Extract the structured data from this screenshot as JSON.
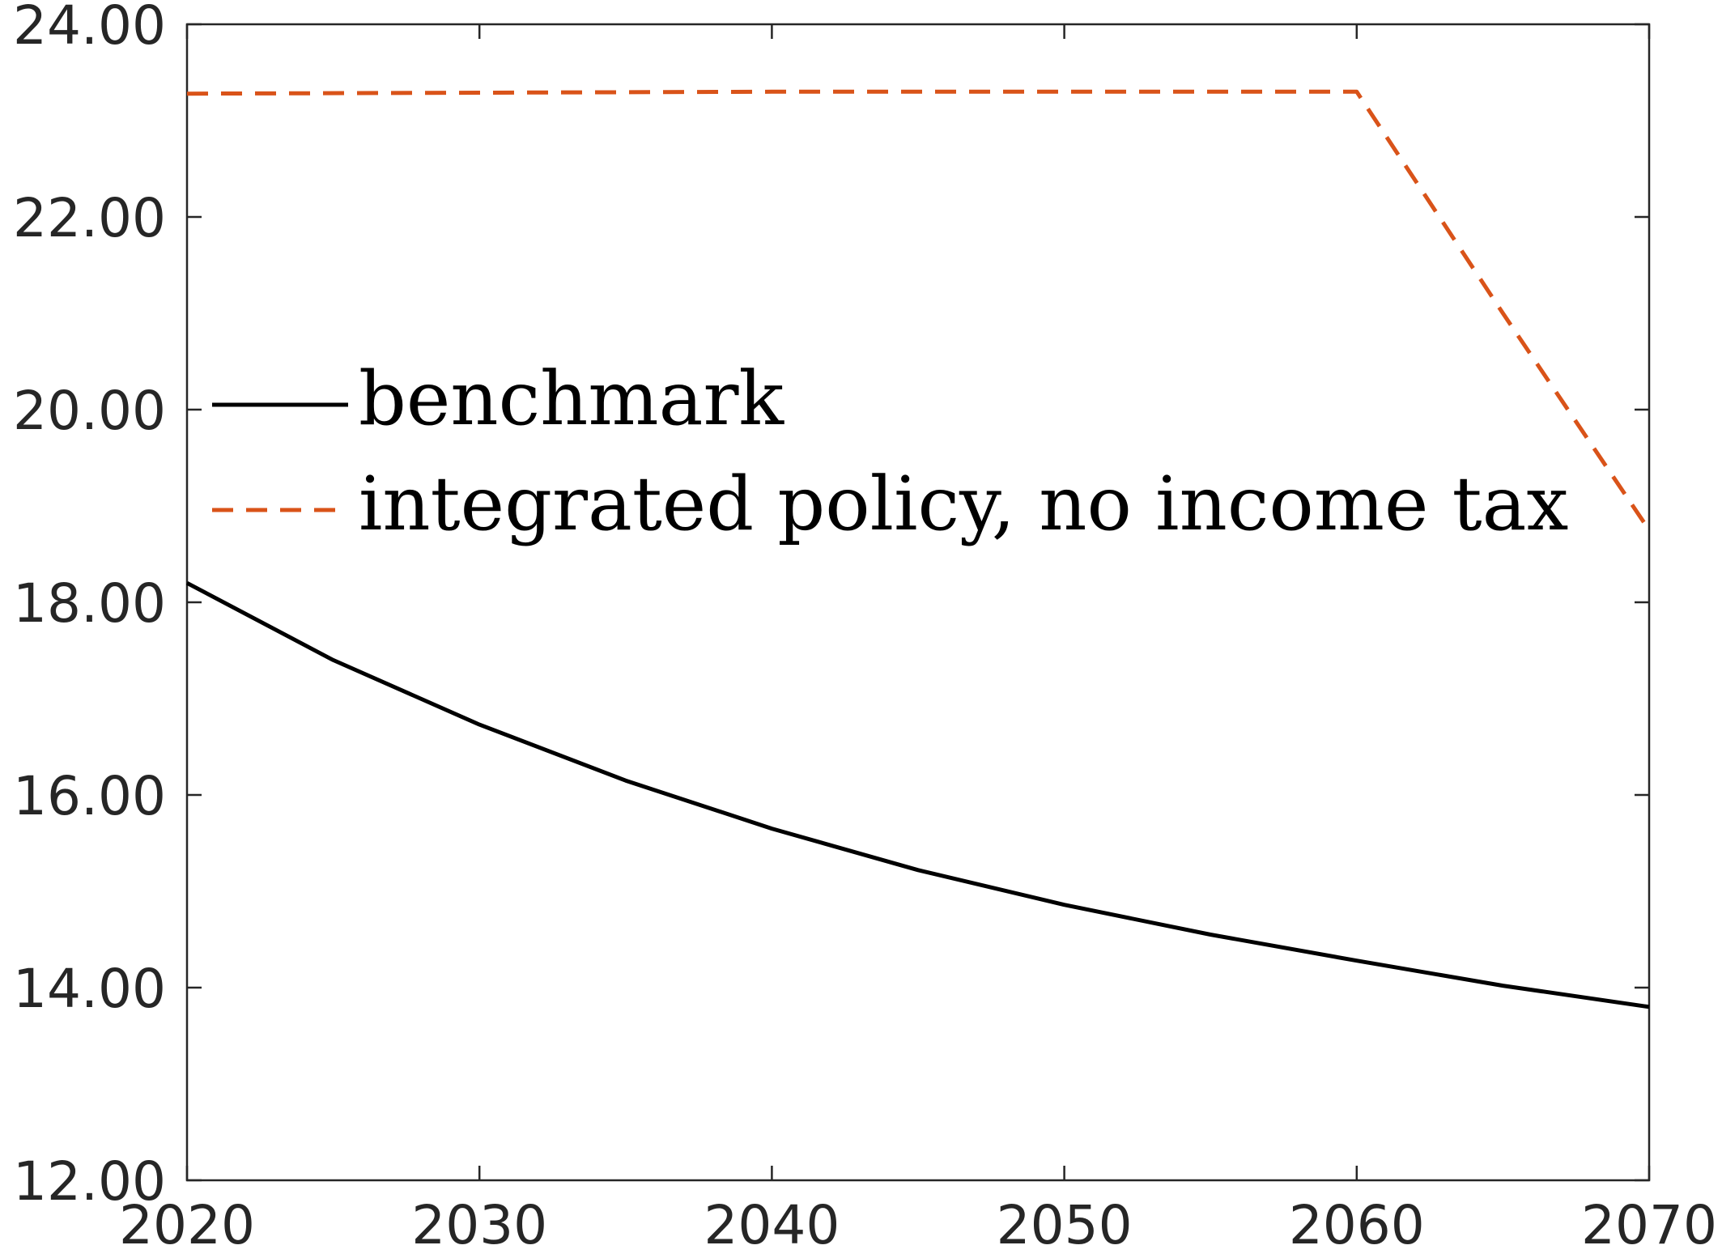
{
  "chart_data": {
    "type": "line",
    "title": "",
    "xlabel": "",
    "ylabel": "",
    "xlim": [
      2020,
      2070
    ],
    "ylim": [
      12,
      24
    ],
    "x_ticks": [
      2020,
      2030,
      2040,
      2050,
      2060,
      2070
    ],
    "x_tick_labels": [
      "2020",
      "2030",
      "2040",
      "2050",
      "2060",
      "2070"
    ],
    "y_ticks": [
      12,
      14,
      16,
      18,
      20,
      22,
      24
    ],
    "y_tick_labels": [
      "12.00",
      "14.00",
      "16.00",
      "18.00",
      "20.00",
      "22.00",
      "24.00"
    ],
    "grid": false,
    "legend_position": "center-left",
    "series": [
      {
        "name": "benchmark",
        "color": "#000000",
        "dash": "solid",
        "x": [
          2020,
          2025,
          2030,
          2035,
          2040,
          2045,
          2050,
          2055,
          2060,
          2065,
          2070
        ],
        "y": [
          18.2,
          17.4,
          16.73,
          16.15,
          15.65,
          15.22,
          14.86,
          14.55,
          14.28,
          14.02,
          13.8
        ]
      },
      {
        "name": "integrated policy, no income tax",
        "color": "#d95319",
        "dash": "dashed",
        "x": [
          2020,
          2030,
          2040,
          2050,
          2060,
          2065,
          2070
        ],
        "y": [
          23.28,
          23.29,
          23.3,
          23.3,
          23.3,
          21.0,
          18.75
        ]
      }
    ]
  }
}
